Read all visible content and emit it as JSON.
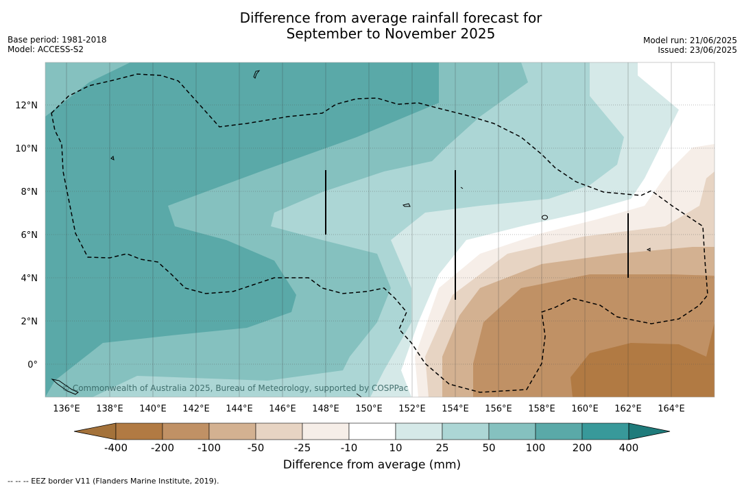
{
  "title": {
    "line1": "Difference from average rainfall forecast for",
    "line2": "September to November 2025"
  },
  "meta": {
    "base_period": "Base period: 1981-2018",
    "model": "Model: ACCESS-S2",
    "model_run": "Model run: 21/06/2025",
    "issued": "Issued: 23/06/2025"
  },
  "map": {
    "lon_labels": [
      "136°E",
      "138°E",
      "140°E",
      "142°E",
      "144°E",
      "146°E",
      "148°E",
      "150°E",
      "152°E",
      "154°E",
      "156°E",
      "158°E",
      "160°E",
      "162°E",
      "164°E"
    ],
    "lat_labels": [
      "12°N",
      "10°N",
      "8°N",
      "6°N",
      "4°N",
      "2°N",
      "0°"
    ],
    "copyright": "© Commonwealth of Australia 2025, Bureau of Meteorology, supported by COSPPac"
  },
  "colorbar": {
    "ticks": [
      "-400",
      "-200",
      "-100",
      "-50",
      "-25",
      "-10",
      "10",
      "25",
      "50",
      "100",
      "200",
      "400"
    ],
    "colors": [
      "#a4723a",
      "#b17a43",
      "#c09165",
      "#d3b191",
      "#e7d4c3",
      "#f6eee8",
      "#ffffff",
      "#d5e9e8",
      "#acd6d5",
      "#85c1bf",
      "#5aa9a8",
      "#38999a",
      "#1f7b7b"
    ],
    "label": "Difference from average (mm)"
  },
  "footnote": "--  --  -- EEZ border V11 (Flanders Marine Institute, 2019)."
}
